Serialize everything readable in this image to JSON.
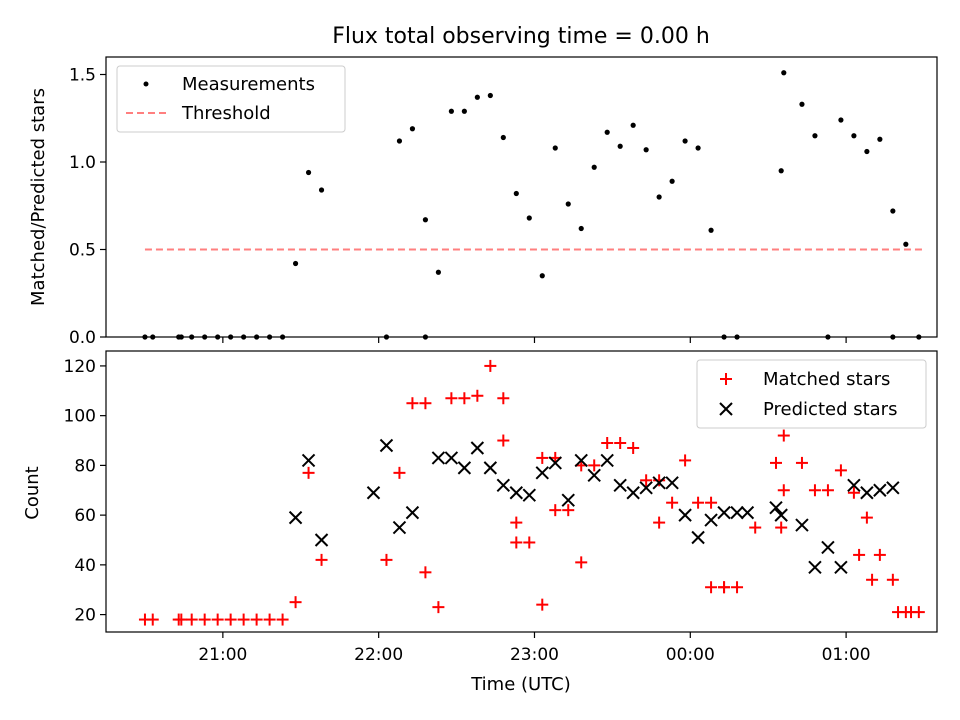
{
  "chart_data": [
    {
      "type": "scatter",
      "title": "Flux total observing time = 0.00 h",
      "xlabel": "",
      "ylabel": "Matched/Predicted stars",
      "ylim": [
        0,
        1.6
      ],
      "yticks": [
        0.0,
        0.5,
        1.0,
        1.5
      ],
      "ytick_labels": [
        "0.0",
        "0.5",
        "1.0",
        "1.5"
      ],
      "xlim": [
        "20:15",
        "01:35"
      ],
      "xticks": [
        "21:00",
        "22:00",
        "23:00",
        "00:00",
        "01:00"
      ],
      "legend": "top-left",
      "grid": false,
      "series": [
        {
          "name": "Measurements",
          "color": "#000000",
          "marker": "dot",
          "x": [
            "20:30",
            "20:33",
            "20:43",
            "20:44",
            "20:48",
            "20:53",
            "20:58",
            "21:03",
            "21:08",
            "21:13",
            "21:18",
            "21:23",
            "21:28",
            "21:33",
            "21:38",
            "22:03",
            "22:08",
            "22:13",
            "22:18",
            "22:23",
            "22:28",
            "22:33",
            "22:38",
            "22:43",
            "22:48",
            "22:53",
            "22:58",
            "23:03",
            "23:08",
            "23:13",
            "23:18",
            "23:23",
            "23:28",
            "23:33",
            "23:38",
            "23:43",
            "23:48",
            "23:53",
            "23:58",
            "00:03",
            "00:08",
            "00:13",
            "00:18",
            "00:35",
            "00:36",
            "00:43",
            "00:48",
            "00:53",
            "00:58",
            "01:03",
            "01:08",
            "01:13",
            "01:18"
          ],
          "y": [
            0.0,
            0.0,
            0.0,
            0.0,
            0.0,
            0.0,
            0.0,
            0.0,
            0.0,
            0.0,
            0.0,
            0.0,
            0.42,
            0.94,
            0.84,
            0.0,
            1.12,
            1.19,
            0.67,
            0.37,
            1.29,
            1.29,
            1.37,
            1.38,
            1.14,
            0.82,
            0.68,
            0.35,
            1.08,
            0.76,
            0.62,
            0.97,
            1.17,
            1.09,
            1.21,
            1.07,
            0.8,
            0.89,
            1.12,
            1.08,
            0.61,
            0.0,
            0.0,
            0.95,
            1.51,
            1.33,
            1.15,
            0.0,
            1.24,
            1.15,
            1.06,
            1.13,
            0.72
          ],
          "x_extra": [
            "22:18",
            "01:18",
            "01:23",
            "01:28"
          ],
          "y_extra": [
            0.0,
            0.0,
            0.53,
            0.0
          ]
        },
        {
          "name": "Threshold",
          "color": "#ff7f7f",
          "style": "dashed",
          "x": [
            "20:30",
            "01:30"
          ],
          "y": [
            0.5,
            0.5
          ]
        }
      ]
    },
    {
      "type": "scatter",
      "title": "",
      "xlabel": "Time (UTC)",
      "ylabel": "Count",
      "ylim": [
        13,
        126
      ],
      "yticks": [
        20,
        40,
        60,
        80,
        100,
        120
      ],
      "ytick_labels": [
        "20",
        "40",
        "60",
        "80",
        "100",
        "120"
      ],
      "xlim": [
        "20:15",
        "01:35"
      ],
      "xticks": [
        "21:00",
        "22:00",
        "23:00",
        "00:00",
        "01:00"
      ],
      "legend": "top-right",
      "grid": false,
      "series": [
        {
          "name": "Matched stars",
          "color": "#ff0000",
          "marker": "plus",
          "x": [
            "20:30",
            "20:33",
            "20:43",
            "20:44",
            "20:48",
            "20:53",
            "20:58",
            "21:03",
            "21:08",
            "21:13",
            "21:18",
            "21:23",
            "21:28",
            "21:33",
            "21:38",
            "22:03",
            "22:08",
            "22:13",
            "22:18",
            "22:23",
            "22:28",
            "22:33",
            "22:38",
            "22:43",
            "22:48",
            "22:53",
            "22:58",
            "23:03",
            "23:08",
            "23:13",
            "23:18",
            "23:23",
            "23:28",
            "23:33",
            "23:38",
            "23:43",
            "23:48",
            "23:53",
            "23:58",
            "00:03",
            "00:08",
            "00:13",
            "00:18",
            "00:35",
            "00:36",
            "00:43",
            "00:48",
            "00:53",
            "00:58",
            "01:03",
            "01:08",
            "01:13",
            "01:18",
            "22:18",
            "01:23",
            "01:28",
            "22:48",
            "22:53",
            "23:03",
            "23:08",
            "23:18",
            "23:48",
            "00:08",
            "00:13",
            "00:25",
            "00:33",
            "00:36",
            "01:05",
            "01:10",
            "01:20",
            "01:25"
          ],
          "y": [
            18,
            18,
            18,
            18,
            18,
            18,
            18,
            18,
            18,
            18,
            18,
            18,
            25,
            77,
            42,
            42,
            77,
            105,
            37,
            23,
            107,
            107,
            108,
            120,
            90,
            57,
            49,
            24,
            83,
            62,
            41,
            80,
            89,
            89,
            87,
            74,
            57,
            65,
            82,
            65,
            31,
            31,
            31,
            55,
            92,
            81,
            70,
            70,
            78,
            69,
            59,
            44,
            34,
            105,
            21,
            21,
            107,
            49,
            83,
            62,
            80,
            74,
            65,
            31,
            55,
            81,
            70,
            44,
            34,
            21,
            21
          ]
        },
        {
          "name": "Predicted stars",
          "color": "#000000",
          "marker": "x",
          "x": [
            "21:28",
            "21:33",
            "21:38",
            "21:58",
            "22:03",
            "22:08",
            "22:13",
            "22:23",
            "22:28",
            "22:33",
            "22:38",
            "22:43",
            "22:48",
            "22:53",
            "22:58",
            "23:03",
            "23:08",
            "23:13",
            "23:18",
            "23:23",
            "23:28",
            "23:33",
            "23:38",
            "23:43",
            "23:48",
            "23:53",
            "23:58",
            "00:03",
            "00:08",
            "00:13",
            "00:18",
            "00:22",
            "00:33",
            "00:35",
            "00:43",
            "00:48",
            "00:53",
            "00:58",
            "01:03",
            "01:08",
            "01:13",
            "01:18"
          ],
          "y": [
            59,
            82,
            50,
            69,
            88,
            55,
            61,
            83,
            83,
            79,
            87,
            79,
            72,
            69,
            68,
            77,
            81,
            66,
            82,
            76,
            82,
            72,
            69,
            71,
            73,
            73,
            60,
            51,
            58,
            61,
            61,
            61,
            63,
            60,
            56,
            39,
            47,
            39,
            72,
            69,
            70,
            71
          ]
        }
      ]
    }
  ]
}
